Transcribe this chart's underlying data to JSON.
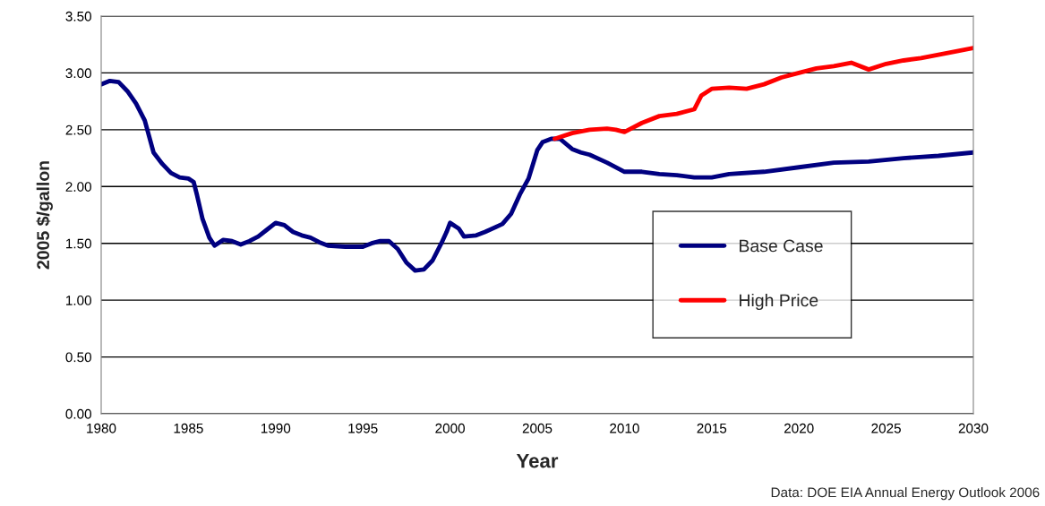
{
  "chart_data": {
    "type": "line",
    "xlabel": "Year",
    "ylabel": "2005 $/gallon",
    "xlim": [
      1980,
      2030
    ],
    "xticks": [
      1980,
      1985,
      1990,
      1995,
      2000,
      2005,
      2010,
      2015,
      2020,
      2025,
      2030
    ],
    "ylim": [
      0,
      3.5
    ],
    "yticks": [
      {
        "value": 0,
        "label": "0.00"
      },
      {
        "value": 0.5,
        "label": "0.50"
      },
      {
        "value": 1,
        "label": "1.00"
      },
      {
        "value": 1.5,
        "label": "1.50"
      },
      {
        "value": 2,
        "label": "2.00"
      },
      {
        "value": 2.5,
        "label": "2.50"
      },
      {
        "value": 3,
        "label": "3.00"
      },
      {
        "value": 3.5,
        "label": "3.50"
      }
    ],
    "grid": "y",
    "legend": "right",
    "line_style": "solid",
    "marker": "none",
    "annotations": [
      "Data: DOE EIA Annual Energy Outlook 2006"
    ],
    "series": [
      {
        "name": "Base Case",
        "color": "#000080",
        "x": [
          1980,
          1980.5,
          1981,
          1981.5,
          1982,
          1982.5,
          1983,
          1983.5,
          1984,
          1984.5,
          1985,
          1985.3,
          1985.5,
          1985.8,
          1986.2,
          1986.5,
          1987,
          1987.5,
          1988,
          1988.5,
          1989,
          1989.5,
          1990,
          1990.5,
          1991,
          1991.5,
          1992,
          1992.5,
          1993,
          1994,
          1995,
          1995.5,
          1996,
          1996.5,
          1997,
          1997.5,
          1998,
          1998.5,
          1999,
          1999.5,
          1999.8,
          2000,
          2000.5,
          2000.8,
          2001.5,
          2002,
          2003,
          2003.5,
          2004,
          2004.5,
          2005,
          2005.3,
          2005.8,
          2006.3,
          2007,
          2007.5,
          2008,
          2009,
          2010,
          2011,
          2012,
          2013,
          2014,
          2015,
          2016,
          2018,
          2020,
          2022,
          2024,
          2026,
          2028,
          2030
        ],
        "values": [
          2.9,
          2.93,
          2.92,
          2.84,
          2.73,
          2.58,
          2.3,
          2.2,
          2.12,
          2.08,
          2.07,
          2.04,
          1.92,
          1.72,
          1.55,
          1.48,
          1.53,
          1.52,
          1.49,
          1.52,
          1.56,
          1.62,
          1.68,
          1.66,
          1.6,
          1.57,
          1.55,
          1.51,
          1.48,
          1.47,
          1.47,
          1.5,
          1.52,
          1.52,
          1.45,
          1.33,
          1.26,
          1.27,
          1.35,
          1.5,
          1.6,
          1.68,
          1.63,
          1.56,
          1.57,
          1.6,
          1.67,
          1.76,
          1.93,
          2.07,
          2.32,
          2.39,
          2.42,
          2.42,
          2.33,
          2.3,
          2.28,
          2.21,
          2.13,
          2.13,
          2.11,
          2.1,
          2.08,
          2.08,
          2.11,
          2.13,
          2.17,
          2.21,
          2.22,
          2.25,
          2.27,
          2.3
        ]
      },
      {
        "name": "High Price",
        "color": "#ff0000",
        "x": [
          2006,
          2007,
          2008,
          2009,
          2009.5,
          2010,
          2011,
          2012,
          2013,
          2014,
          2014.4,
          2015,
          2016,
          2017,
          2018,
          2019,
          2020,
          2021,
          2022,
          2023,
          2024,
          2025,
          2026,
          2027,
          2028,
          2029,
          2030
        ],
        "values": [
          2.42,
          2.47,
          2.5,
          2.51,
          2.5,
          2.48,
          2.56,
          2.62,
          2.64,
          2.68,
          2.8,
          2.86,
          2.87,
          2.86,
          2.9,
          2.96,
          3.0,
          3.04,
          3.06,
          3.09,
          3.03,
          3.08,
          3.11,
          3.13,
          3.16,
          3.19,
          3.22
        ]
      }
    ]
  }
}
